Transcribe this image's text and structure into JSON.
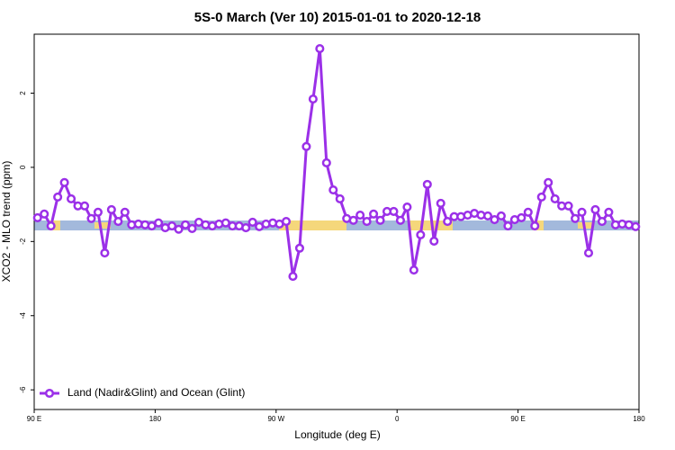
{
  "chart_data": {
    "type": "line",
    "title": "5S-0 March (Ver 10)   2015-01-01 to 2020-12-18",
    "x_label": "Longitude (deg E)",
    "y_label": "XCO2 - MLO trend (ppm)",
    "legend_position": "bottom-left",
    "xlim": [
      90,
      540
    ],
    "xticks": [
      {
        "value": 90,
        "label": "90 E"
      },
      180,
      {
        "value": 270,
        "label": "90 W"
      },
      {
        "value": 360,
        "label": "0"
      },
      {
        "value": 450,
        "label": "90 E"
      },
      {
        "value": 540,
        "label": "180"
      }
    ],
    "ylim": [
      -6.53,
      3.59
    ],
    "yticks": [
      -6,
      -4,
      -2,
      0,
      2
    ],
    "x": [
      92.5,
      97.5,
      102.5,
      107.5,
      112.5,
      117.5,
      122.5,
      127.5,
      132.5,
      137.5,
      142.5,
      147.5,
      152.5,
      157.5,
      162.5,
      167.5,
      172.5,
      177.5,
      182.5,
      187.5,
      192.5,
      197.5,
      202.5,
      207.5,
      212.5,
      217.5,
      222.5,
      227.5,
      232.5,
      237.5,
      242.5,
      247.5,
      252.5,
      257.5,
      262.5,
      267.5,
      272.5,
      277.5,
      282.5,
      287.5,
      292.5,
      297.5,
      302.5,
      307.5,
      312.5,
      317.5,
      322.5,
      327.5,
      332.5,
      337.5,
      342.5,
      347.5,
      352.5,
      357.5,
      362.5,
      367.5,
      372.5,
      377.5,
      382.5,
      387.5,
      392.5,
      397.5,
      402.5,
      407.5,
      412.5,
      417.5,
      422.5,
      427.5,
      432.5,
      437.5,
      442.5,
      447.5,
      452.5,
      457.5,
      462.5,
      467.5,
      472.5,
      477.5,
      482.5,
      487.5,
      492.5,
      497.5,
      502.5,
      507.5,
      512.5,
      517.5,
      522.5,
      527.5,
      532.5,
      537.5
    ],
    "series": [
      {
        "name": "Land (Nadir&Glint) and Ocean (Glint)",
        "color": "#9b30e8",
        "values": [
          -1.36,
          -1.26,
          -1.58,
          -0.8,
          -0.41,
          -0.85,
          -1.04,
          -1.04,
          -1.38,
          -1.21,
          -2.31,
          -1.14,
          -1.46,
          -1.21,
          -1.55,
          -1.53,
          -1.55,
          -1.58,
          -1.5,
          -1.63,
          -1.58,
          -1.67,
          -1.55,
          -1.65,
          -1.48,
          -1.55,
          -1.58,
          -1.53,
          -1.5,
          -1.58,
          -1.58,
          -1.63,
          -1.48,
          -1.6,
          -1.53,
          -1.5,
          -1.53,
          -1.46,
          -2.94,
          -2.18,
          0.56,
          1.84,
          3.2,
          0.12,
          -0.61,
          -0.85,
          -1.38,
          -1.43,
          -1.29,
          -1.46,
          -1.26,
          -1.43,
          -1.19,
          -1.19,
          -1.43,
          -1.07,
          -2.77,
          -1.82,
          -0.46,
          -1.99,
          -0.97,
          -1.46,
          -1.33,
          -1.33,
          -1.29,
          -1.24,
          -1.29,
          -1.31,
          -1.41,
          -1.31,
          -1.58,
          -1.41,
          -1.36,
          -1.21,
          -1.58,
          -0.8,
          -0.41,
          -0.85,
          -1.04,
          -1.04,
          -1.38,
          -1.21,
          -2.31,
          -1.14,
          -1.46,
          -1.21,
          -1.55,
          -1.53,
          -1.55,
          -1.6
        ]
      }
    ]
  }
}
